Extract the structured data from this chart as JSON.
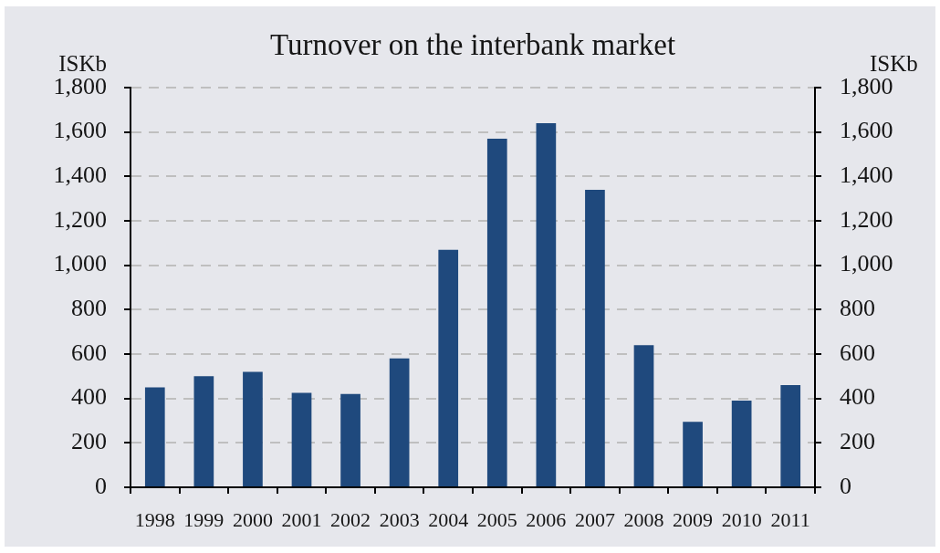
{
  "chart_data": {
    "type": "bar",
    "title": "Turnover on the interbank market",
    "ylabel": "ISKb",
    "y2label": "ISKb",
    "categories": [
      "1998",
      "1999",
      "2000",
      "2001",
      "2002",
      "2003",
      "2004",
      "2005",
      "2006",
      "2007",
      "2008",
      "2009",
      "2010",
      "2011"
    ],
    "values": [
      450,
      500,
      520,
      425,
      420,
      580,
      1070,
      1570,
      1640,
      1340,
      640,
      295,
      390,
      460
    ],
    "color": "#1f497d",
    "ylim": [
      0,
      1800
    ],
    "yticks": [
      0,
      200,
      400,
      600,
      800,
      {
        "value": 1000,
        "label": "1,000"
      },
      {
        "value": 1200,
        "label": "1,200"
      },
      {
        "value": 1400,
        "label": "1,400"
      },
      {
        "value": 1600,
        "label": "1,600"
      },
      {
        "value": 1800,
        "label": "1,800"
      }
    ],
    "y2lim": [
      0,
      1800
    ],
    "y2ticks": [
      0,
      200,
      400,
      600,
      800,
      {
        "value": 1000,
        "label": "1,000"
      },
      {
        "value": 1200,
        "label": "1,200"
      },
      {
        "value": 1400,
        "label": "1,400"
      },
      {
        "value": 1600,
        "label": "1,600"
      },
      {
        "value": 1800,
        "label": "1,800"
      }
    ],
    "grid": "y"
  }
}
